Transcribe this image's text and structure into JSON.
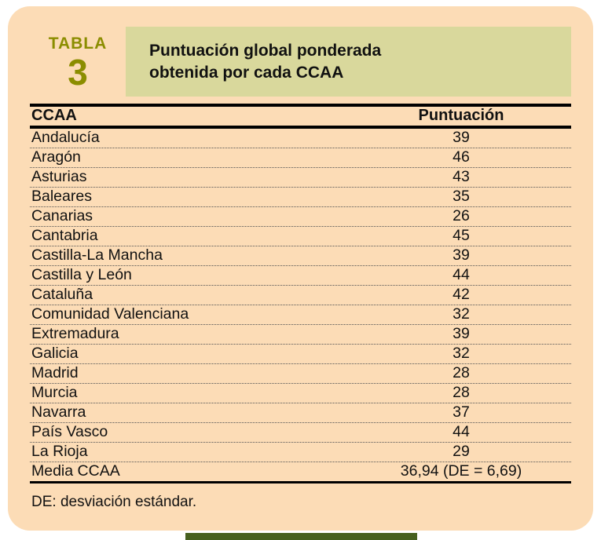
{
  "colors": {
    "panel_bg": "#fcdcb6",
    "title_bar_bg": "#d9d89c",
    "accent_olive": "#8b8d00",
    "rule_black": "#000000",
    "bottom_bar_green": "#47601f"
  },
  "table_badge": {
    "label": "TABLA",
    "number": "3"
  },
  "title": {
    "line1": "Puntuación global ponderada",
    "line2": "obtenida por cada CCAA"
  },
  "table": {
    "columns": [
      "CCAA",
      "Puntuación"
    ],
    "rows": [
      [
        "Andalucía",
        "39"
      ],
      [
        "Aragón",
        "46"
      ],
      [
        "Asturias",
        "43"
      ],
      [
        "Baleares",
        "35"
      ],
      [
        "Canarias",
        "26"
      ],
      [
        "Cantabria",
        "45"
      ],
      [
        "Castilla-La Mancha",
        "39"
      ],
      [
        "Castilla y León",
        "44"
      ],
      [
        "Cataluña",
        "42"
      ],
      [
        "Comunidad Valenciana",
        "32"
      ],
      [
        "Extremadura",
        "39"
      ],
      [
        "Galicia",
        "32"
      ],
      [
        "Madrid",
        "28"
      ],
      [
        "Murcia",
        "28"
      ],
      [
        "Navarra",
        "37"
      ],
      [
        "País Vasco",
        "44"
      ],
      [
        "La Rioja",
        "29"
      ]
    ],
    "summary_row": [
      "Media CCAA",
      "36,94 (DE = 6,69)"
    ]
  },
  "footnote": "DE: desviación estándar.",
  "chart_data": {
    "type": "table",
    "title": "Puntuación global ponderada obtenida por cada CCAA",
    "columns": [
      "CCAA",
      "Puntuación"
    ],
    "categories": [
      "Andalucía",
      "Aragón",
      "Asturias",
      "Baleares",
      "Canarias",
      "Cantabria",
      "Castilla-La Mancha",
      "Castilla y León",
      "Cataluña",
      "Comunidad Valenciana",
      "Extremadura",
      "Galicia",
      "Madrid",
      "Murcia",
      "Navarra",
      "País Vasco",
      "La Rioja"
    ],
    "values": [
      39,
      46,
      43,
      35,
      26,
      45,
      39,
      44,
      42,
      32,
      39,
      32,
      28,
      28,
      37,
      44,
      29
    ],
    "summary": {
      "label": "Media CCAA",
      "mean": "36,94",
      "sd": "6,69"
    }
  }
}
